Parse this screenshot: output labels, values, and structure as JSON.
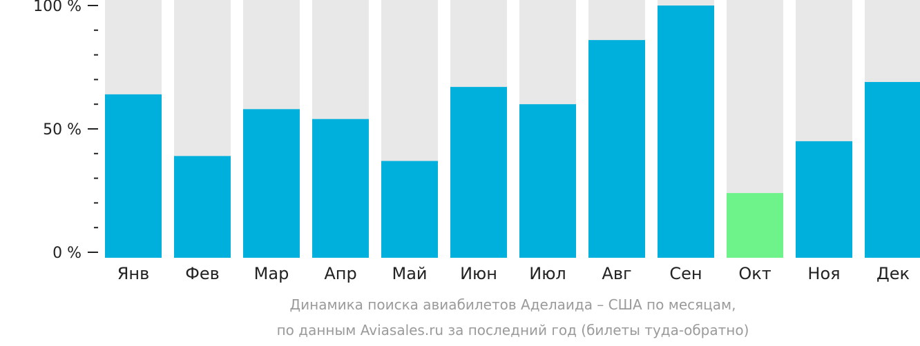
{
  "chart_data": {
    "type": "bar",
    "categories": [
      "Янв",
      "Фев",
      "Мар",
      "Апр",
      "Май",
      "Июн",
      "Июл",
      "Авг",
      "Сен",
      "Окт",
      "Ноя",
      "Дек"
    ],
    "values": [
      64,
      39,
      58,
      54,
      37,
      67,
      60,
      86,
      100,
      24,
      45,
      69
    ],
    "ylim": [
      0,
      100
    ],
    "yticks_labeled": [
      {
        "value": 0,
        "label": "0 %"
      },
      {
        "value": 50,
        "label": "50 %"
      },
      {
        "value": 100,
        "label": "100 %"
      }
    ],
    "ytick_step": 10,
    "grid": false,
    "legend": "none",
    "highlight_index": 9,
    "colors": {
      "bar": "#00b0dc",
      "highlight": "#6ef28a",
      "background_bar": "#e8e8e8",
      "axis": "#222222"
    }
  },
  "caption": {
    "line1": "Динамика поиска авиабилетов Аделаида – США по месяцам,",
    "line2": "по данным Aviasales.ru за последний год (билеты туда-обратно)"
  }
}
